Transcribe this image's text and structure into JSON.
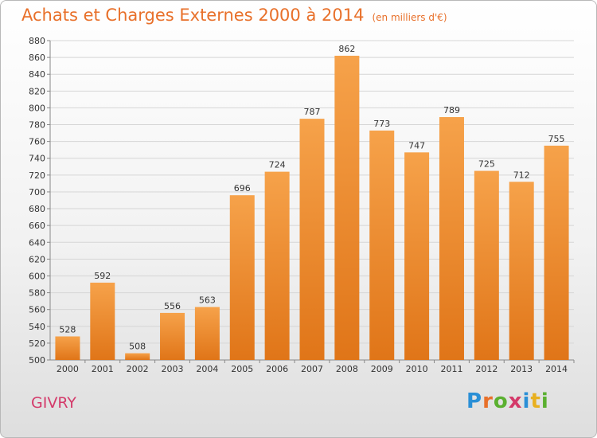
{
  "title": "Achats et Charges Externes 2000 à 2014",
  "subtitle": "(en milliers d'€)",
  "place": "GIVRY",
  "logo": {
    "letters": [
      "P",
      "r",
      "o",
      "x",
      "i",
      "t",
      "i"
    ],
    "colors": [
      "#2a8fd6",
      "#e8702a",
      "#5ab030",
      "#d43a6a",
      "#2a8fd6",
      "#e8b020",
      "#5ab030"
    ]
  },
  "colors": {
    "bar_top": "#f6a24a",
    "bar_bottom": "#e07518",
    "accent": "#e8702a"
  },
  "chart_data": {
    "type": "bar",
    "categories": [
      "2000",
      "2001",
      "2002",
      "2003",
      "2004",
      "2005",
      "2006",
      "2007",
      "2008",
      "2009",
      "2010",
      "2011",
      "2012",
      "2013",
      "2014"
    ],
    "values": [
      528,
      592,
      508,
      556,
      563,
      696,
      724,
      787,
      862,
      773,
      747,
      789,
      725,
      712,
      755
    ],
    "ylim": [
      500,
      880
    ],
    "ytick_step": 20,
    "grid": true,
    "xlabel": "",
    "ylabel": ""
  }
}
